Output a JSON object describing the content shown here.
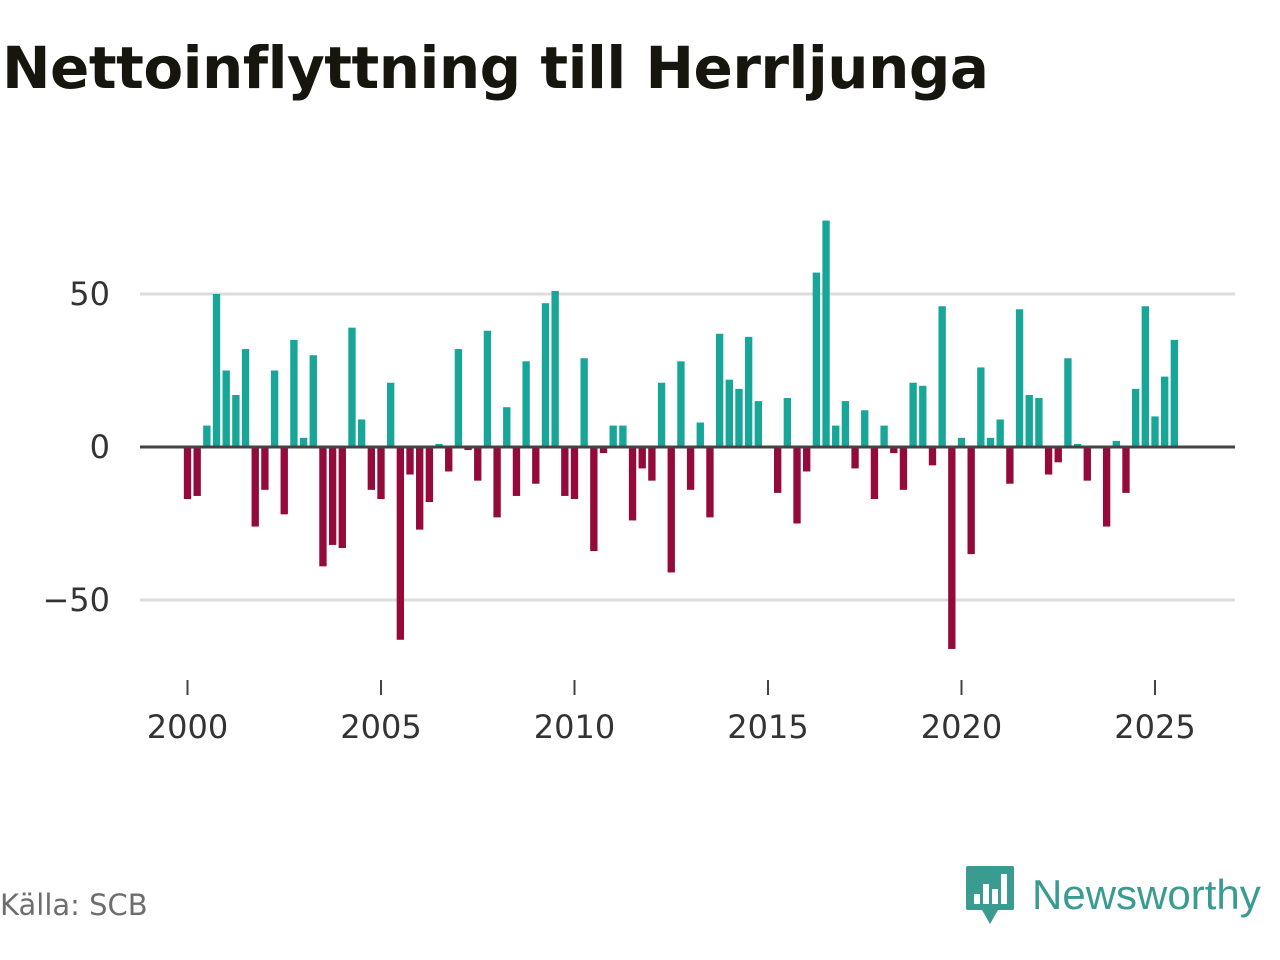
{
  "title": "Nettoinflyttning till Herrljunga",
  "source": "Källa: SCB",
  "logo": {
    "text": "Newsworthy",
    "icon": "newsworthy-logo-icon",
    "color": "#3a9c90"
  },
  "colors": {
    "positive": "#18a699",
    "negative": "#940b3b",
    "grid": "#dcdcdc",
    "zero_line": "#444444",
    "axis_text": "#333333"
  },
  "chart_data": {
    "type": "bar",
    "title": "Nettoinflyttning till Herrljunga",
    "xlabel": "",
    "ylabel": "",
    "ylim": [
      -75,
      80
    ],
    "yticks": [
      50,
      0,
      -50
    ],
    "ytick_labels": [
      "50",
      "0",
      "−50"
    ],
    "xticks": [
      2000,
      2005,
      2010,
      2015,
      2020,
      2025
    ],
    "xtick_labels": [
      "2000",
      "2005",
      "2010",
      "2015",
      "2020",
      "2025"
    ],
    "xlim": [
      1999.5,
      2027.1
    ],
    "bar_width_years": 0.19,
    "x_start": 2000.0,
    "x_step": 0.25,
    "quarters_start": "2000 Q1",
    "values": [
      -17,
      -16,
      7,
      50,
      25,
      17,
      32,
      -26,
      -14,
      25,
      -22,
      35,
      3,
      30,
      -39,
      -32,
      -33,
      39,
      9,
      -14,
      -17,
      21,
      -63,
      -9,
      -27,
      -18,
      1,
      -8,
      32,
      -1,
      -11,
      38,
      -23,
      13,
      -16,
      28,
      -12,
      47,
      51,
      -16,
      -17,
      29,
      -34,
      -2,
      7,
      7,
      -24,
      -7,
      -11,
      21,
      -41,
      28,
      -14,
      8,
      -23,
      37,
      22,
      19,
      36,
      15,
      0,
      -15,
      16,
      -25,
      -8,
      57,
      74,
      7,
      15,
      -7,
      12,
      -17,
      7,
      -2,
      -14,
      21,
      20,
      -6,
      46,
      -66,
      3,
      -35,
      26,
      3,
      9,
      -12,
      45,
      17,
      16,
      -9,
      -5,
      29,
      1,
      -11,
      0,
      -26,
      2,
      -15,
      19,
      46,
      10,
      23,
      35
    ]
  }
}
